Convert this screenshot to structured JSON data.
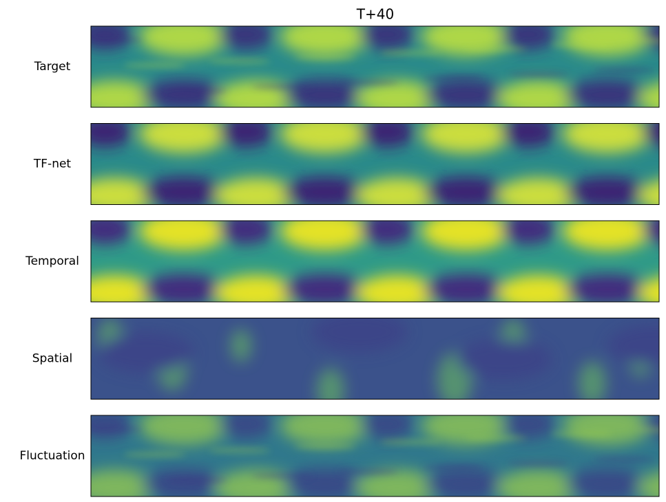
{
  "figure": {
    "title": "T+40",
    "panels": [
      {
        "label": "Target"
      },
      {
        "label": "TF-net"
      },
      {
        "label": "Temporal"
      },
      {
        "label": "Spatial"
      },
      {
        "label": "Fluctuation"
      }
    ]
  }
}
